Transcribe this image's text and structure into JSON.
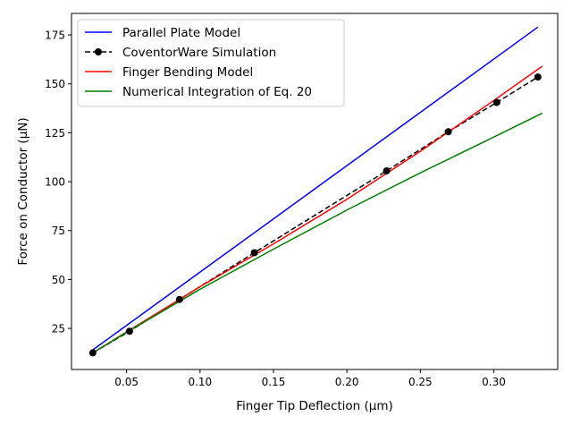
{
  "chart_data": {
    "type": "line",
    "xlabel": "Finger Tip Deflection (μm)",
    "ylabel": "Force on Conductor (μN)",
    "xlim": [
      0.0125,
      0.3435
    ],
    "ylim": [
      4,
      186
    ],
    "xticks": [
      0.05,
      0.1,
      0.15,
      0.2,
      0.25,
      0.3
    ],
    "xtick_labels": [
      "0.05",
      "0.10",
      "0.15",
      "0.20",
      "0.25",
      "0.30"
    ],
    "yticks": [
      25,
      50,
      75,
      100,
      125,
      150,
      175
    ],
    "ytick_labels": [
      "25",
      "50",
      "75",
      "100",
      "125",
      "150",
      "175"
    ],
    "grid": false,
    "legend_position": "top-left",
    "series": [
      {
        "name": "Parallel Plate Model",
        "color": "#0000ff",
        "style": "solid",
        "marker": "none",
        "x": [
          0.027,
          0.33
        ],
        "y": [
          14,
          179
        ]
      },
      {
        "name": "CoventorWare Simulation",
        "color": "#000000",
        "style": "dashed",
        "marker": "circle",
        "x": [
          0.027,
          0.052,
          0.086,
          0.137,
          0.227,
          0.269,
          0.302,
          0.33
        ],
        "y": [
          12.5,
          23.5,
          39.8,
          63.7,
          105.5,
          125.5,
          140.5,
          153.5
        ]
      },
      {
        "name": "Finger Bending Model",
        "color": "#ff0000",
        "style": "solid",
        "marker": "none",
        "x": [
          0.027,
          0.05,
          0.086,
          0.1,
          0.15,
          0.2,
          0.25,
          0.3,
          0.333
        ],
        "y": [
          12.5,
          23.2,
          39.8,
          46.3,
          68.2,
          91.0,
          115.5,
          141.5,
          159.0
        ]
      },
      {
        "name": "Numerical Integration of Eq. 20",
        "color": "#008000",
        "style": "solid",
        "marker": "none",
        "x": [
          0.027,
          0.05,
          0.1,
          0.15,
          0.2,
          0.25,
          0.3,
          0.333
        ],
        "y": [
          12.5,
          23.0,
          45.0,
          65.5,
          85.5,
          104.5,
          122.8,
          135.0
        ]
      }
    ]
  }
}
